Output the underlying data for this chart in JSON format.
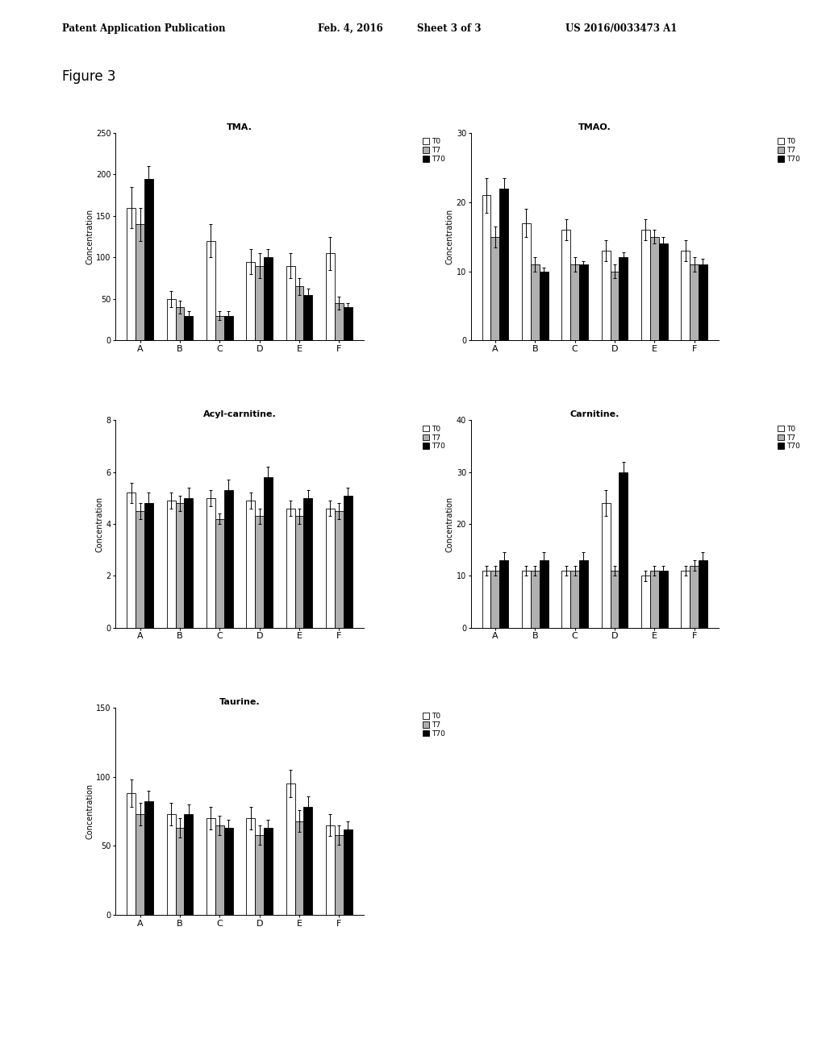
{
  "header_left": "Patent Application Publication",
  "header_date": "Feb. 4, 2016",
  "header_sheet": "Sheet 3 of 3",
  "header_right": "US 2016/0033473 A1",
  "figure_label": "Figure 3",
  "categories": [
    "A",
    "B",
    "C",
    "D",
    "E",
    "F"
  ],
  "legend_labels": [
    "T0",
    "T7",
    "T70"
  ],
  "bar_colors": [
    "#ffffff",
    "#b0b0b0",
    "#000000"
  ],
  "bar_edgecolor": "#000000",
  "plots": [
    {
      "title": "TMA.",
      "ylabel": "Concentration",
      "ylim": [
        0,
        250
      ],
      "yticks": [
        0,
        50,
        100,
        150,
        200,
        250
      ],
      "data": {
        "T0": [
          160,
          50,
          120,
          95,
          90,
          105
        ],
        "T7": [
          140,
          40,
          30,
          90,
          65,
          45
        ],
        "T70": [
          195,
          30,
          30,
          100,
          55,
          40
        ]
      },
      "errors": {
        "T0": [
          25,
          10,
          20,
          15,
          15,
          20
        ],
        "T7": [
          20,
          8,
          5,
          15,
          10,
          8
        ],
        "T70": [
          15,
          5,
          5,
          10,
          8,
          5
        ]
      }
    },
    {
      "title": "TMAO.",
      "ylabel": "Concentration",
      "ylim": [
        0,
        30
      ],
      "yticks": [
        0,
        10,
        20,
        30
      ],
      "data": {
        "T0": [
          21,
          17,
          16,
          13,
          16,
          13
        ],
        "T7": [
          15,
          11,
          11,
          10,
          15,
          11
        ],
        "T70": [
          22,
          10,
          11,
          12,
          14,
          11
        ]
      },
      "errors": {
        "T0": [
          2.5,
          2.0,
          1.5,
          1.5,
          1.5,
          1.5
        ],
        "T7": [
          1.5,
          1.0,
          1.0,
          1.0,
          1.0,
          1.0
        ],
        "T70": [
          1.5,
          0.5,
          0.5,
          0.8,
          1.0,
          0.8
        ]
      }
    },
    {
      "title": "Acyl-carnitine.",
      "ylabel": "Concentration",
      "ylim": [
        0,
        8
      ],
      "yticks": [
        0,
        2,
        4,
        6,
        8
      ],
      "data": {
        "T0": [
          5.2,
          4.9,
          5.0,
          4.9,
          4.6,
          4.6
        ],
        "T7": [
          4.5,
          4.8,
          4.2,
          4.3,
          4.3,
          4.5
        ],
        "T70": [
          4.8,
          5.0,
          5.3,
          5.8,
          5.0,
          5.1
        ]
      },
      "errors": {
        "T0": [
          0.4,
          0.3,
          0.3,
          0.3,
          0.3,
          0.3
        ],
        "T7": [
          0.3,
          0.3,
          0.2,
          0.3,
          0.3,
          0.3
        ],
        "T70": [
          0.4,
          0.4,
          0.4,
          0.4,
          0.3,
          0.3
        ]
      }
    },
    {
      "title": "Carnitine.",
      "ylabel": "Concentration",
      "ylim": [
        0,
        40
      ],
      "yticks": [
        0,
        10,
        20,
        30,
        40
      ],
      "data": {
        "T0": [
          11,
          11,
          11,
          24,
          10,
          11
        ],
        "T7": [
          11,
          11,
          11,
          11,
          11,
          12
        ],
        "T70": [
          13,
          13,
          13,
          30,
          11,
          13
        ]
      },
      "errors": {
        "T0": [
          1.0,
          1.0,
          1.0,
          2.5,
          1.0,
          1.0
        ],
        "T7": [
          1.0,
          1.0,
          1.0,
          1.0,
          1.0,
          1.0
        ],
        "T70": [
          1.5,
          1.5,
          1.5,
          2.0,
          1.0,
          1.5
        ]
      }
    },
    {
      "title": "Taurine.",
      "ylabel": "Concentration",
      "ylim": [
        0,
        150
      ],
      "yticks": [
        0,
        50,
        100,
        150
      ],
      "data": {
        "T0": [
          88,
          73,
          70,
          70,
          95,
          65
        ],
        "T7": [
          73,
          63,
          65,
          58,
          68,
          58
        ],
        "T70": [
          82,
          73,
          63,
          63,
          78,
          62
        ]
      },
      "errors": {
        "T0": [
          10,
          8,
          8,
          8,
          10,
          8
        ],
        "T7": [
          8,
          7,
          7,
          7,
          8,
          7
        ],
        "T70": [
          8,
          7,
          6,
          6,
          8,
          6
        ]
      }
    }
  ]
}
